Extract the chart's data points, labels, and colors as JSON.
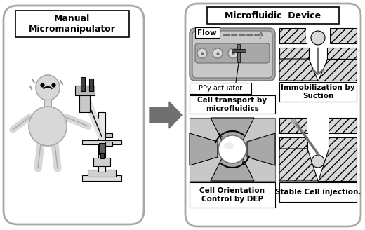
{
  "bg_color": "#ffffff",
  "left_box_label": "Manual\nMicromanipulator",
  "right_box_label": "Microfluidic  Device",
  "labels": {
    "flow": "Flow",
    "ppy": "PPy actuator",
    "cell_transport": "Cell transport by\nmicrofluidics",
    "immobilization": "Immobilization by\nSuction",
    "cell_orientation": "Cell Orientation\nControl by DEP",
    "stable_cell": "Stable Cell injection."
  },
  "gray_light": "#c8c8c8",
  "gray_mid": "#a8a8a8",
  "gray_dark": "#707070",
  "gray_box": "#b0b0b0",
  "gray_fill": "#d8d8d8",
  "white": "#ffffff",
  "black": "#000000"
}
